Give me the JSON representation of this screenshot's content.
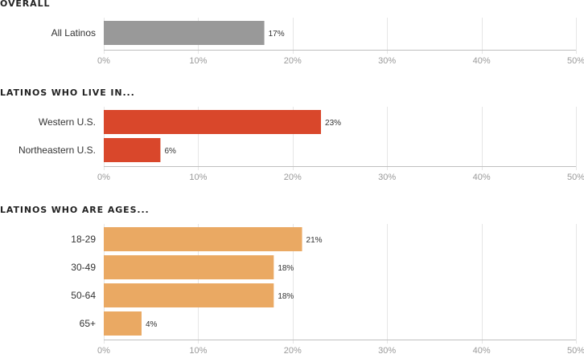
{
  "chart_data": [
    {
      "type": "bar",
      "orientation": "horizontal",
      "title": "OVERALL",
      "categories": [
        "All Latinos"
      ],
      "values": [
        17
      ],
      "value_labels": [
        "17%"
      ],
      "color": "#999999",
      "xlim": [
        0,
        50
      ],
      "xticks": [
        "0%",
        "10%",
        "20%",
        "30%",
        "40%",
        "50%"
      ],
      "grid": true
    },
    {
      "type": "bar",
      "orientation": "horizontal",
      "title": "LATINOS WHO LIVE IN...",
      "categories": [
        "Western U.S.",
        "Northeastern U.S."
      ],
      "values": [
        23,
        6
      ],
      "value_labels": [
        "23%",
        "6%"
      ],
      "color": "#d9472b",
      "xlim": [
        0,
        50
      ],
      "xticks": [
        "0%",
        "10%",
        "20%",
        "30%",
        "40%",
        "50%"
      ],
      "grid": true
    },
    {
      "type": "bar",
      "orientation": "horizontal",
      "title": "LATINOS WHO ARE AGES...",
      "categories": [
        "18-29",
        "30-49",
        "50-64",
        "65+"
      ],
      "values": [
        21,
        18,
        18,
        4
      ],
      "value_labels": [
        "21%",
        "18%",
        "18%",
        "4%"
      ],
      "color": "#eaa963",
      "xlim": [
        0,
        50
      ],
      "xticks": [
        "0%",
        "10%",
        "20%",
        "30%",
        "40%",
        "50%"
      ],
      "grid": true
    }
  ]
}
